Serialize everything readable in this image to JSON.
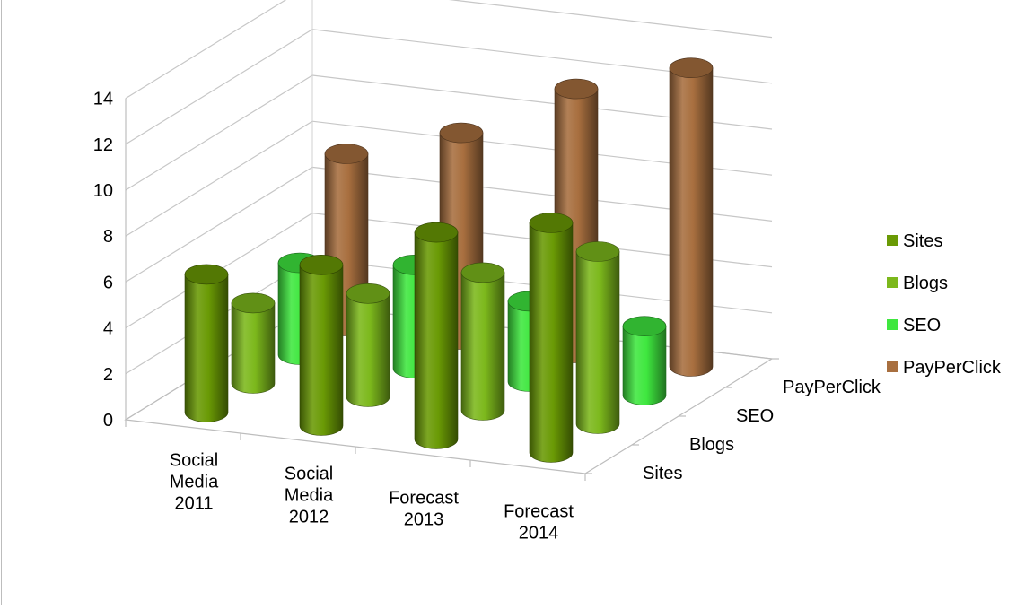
{
  "chart_data": {
    "type": "bar",
    "variant": "3d-cylinder",
    "title": "",
    "categories": [
      [
        "Social",
        "Media",
        "2011"
      ],
      [
        "Social",
        "Media",
        "2012"
      ],
      [
        "Forecast",
        "2013"
      ],
      [
        "Forecast",
        "2014"
      ]
    ],
    "series": [
      {
        "name": "Sites",
        "color": "#6a9a05",
        "values": [
          6,
          7,
          9,
          10
        ]
      },
      {
        "name": "Blogs",
        "color": "#7cb81c",
        "values": [
          3.5,
          4.5,
          6,
          7.5
        ]
      },
      {
        "name": "SEO",
        "color": "#3fe73f",
        "values": [
          4,
          4.5,
          3.5,
          3
        ]
      },
      {
        "name": "PayPerClick",
        "color": "#a86f3f",
        "values": [
          7.5,
          9,
          11.5,
          13
        ]
      }
    ],
    "depth_labels": [
      "Sites",
      "Blogs",
      "SEO",
      "PayPerClick"
    ],
    "ylim": [
      0,
      14
    ],
    "yticks": [
      "0",
      "2",
      "4",
      "6",
      "8",
      "10",
      "12",
      "14"
    ],
    "grid": true,
    "legend_position": "right"
  }
}
